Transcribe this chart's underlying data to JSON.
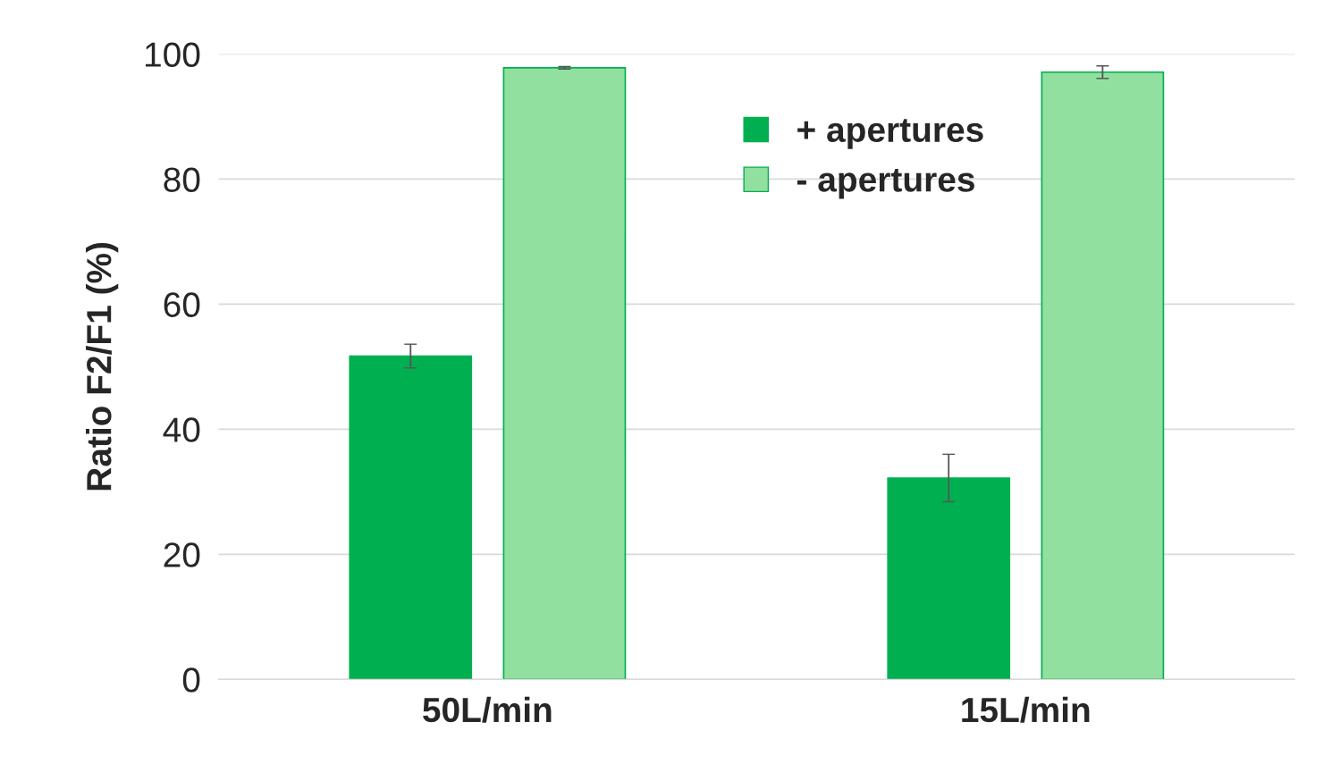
{
  "chart_data": {
    "type": "bar",
    "ylabel": "Ratio F2/F1 (%)",
    "categories": [
      "50L/min",
      "15L/min"
    ],
    "series": [
      {
        "name": "+ apertures",
        "color": "#00b050",
        "values": [
          51.7,
          32.2
        ],
        "errors": [
          1.9,
          3.8
        ]
      },
      {
        "name": "- apertures",
        "color": "#92e0a0",
        "values": [
          97.8,
          97.1
        ],
        "errors": [
          0.2,
          1.0
        ]
      }
    ],
    "ylim": [
      0,
      100
    ],
    "yticks": [
      0,
      20,
      40,
      60,
      80,
      100
    ],
    "grid": "y",
    "legend": "top"
  }
}
